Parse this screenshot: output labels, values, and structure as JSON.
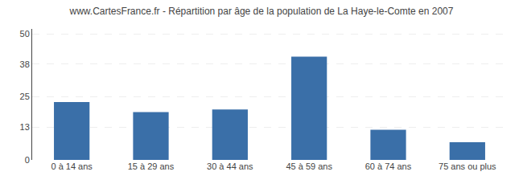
{
  "chart_data": {
    "type": "bar",
    "title": "www.CartesFrance.fr - Répartition par âge de la population de La Haye-le-Comte en 2007",
    "categories": [
      "0 à 14 ans",
      "15 à 29 ans",
      "30 à 44 ans",
      "45 à 59 ans",
      "60 à 74 ans",
      "75 ans ou plus"
    ],
    "values": [
      23,
      19,
      20,
      41,
      12,
      7
    ],
    "color": "#3a6fa8",
    "ylim": [
      0,
      52
    ],
    "yticks": [
      0,
      13,
      25,
      38,
      50
    ],
    "grid": true
  }
}
